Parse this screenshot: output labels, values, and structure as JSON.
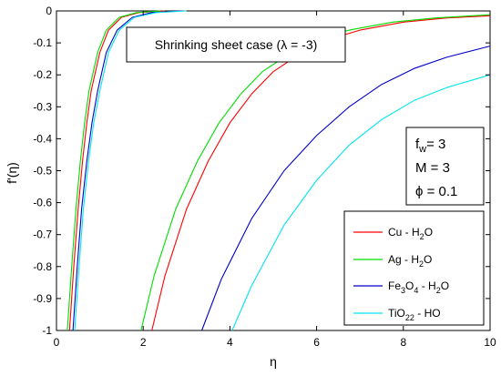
{
  "chart_data": {
    "type": "line",
    "title": "Shrinking sheet case (λ = -3)",
    "xlabel": "η",
    "ylabel": "f'(η)",
    "xlim": [
      0,
      10
    ],
    "ylim": [
      -1,
      0
    ],
    "xticks": [
      0,
      2,
      4,
      6,
      8,
      10
    ],
    "yticks": [
      0,
      -0.1,
      -0.2,
      -0.3,
      -0.4,
      -0.5,
      -0.6,
      -0.7,
      -0.8,
      -0.9,
      -1
    ],
    "xtick_labels": [
      "0",
      "2",
      "4",
      "6",
      "8",
      "10"
    ],
    "ytick_labels": [
      "0",
      "-0.1",
      "-0.2",
      "-0.3",
      "-0.4",
      "-0.5",
      "-0.6",
      "-0.7",
      "-0.8",
      "-0.9",
      "-1"
    ],
    "grid": false,
    "legend_position": "lower-right",
    "parameters": {
      "fw": {
        "symbol": "f",
        "subscript": "w",
        "value": "= 3"
      },
      "M": {
        "text": "M = 3"
      },
      "phi": {
        "text": "ϕ = 0.1"
      }
    },
    "series": [
      {
        "name": "Cu - H2O",
        "label_base": "Cu - H",
        "label_sub": "2",
        "label_tail": "O",
        "color": "#ff0000",
        "branches": [
          {
            "x": [
              0.3,
              0.4,
              0.5,
              0.6,
              0.7,
              0.8,
              1.0,
              1.2,
              1.5,
              1.9,
              2.5
            ],
            "y": [
              -1.0,
              -0.8,
              -0.62,
              -0.47,
              -0.35,
              -0.25,
              -0.13,
              -0.06,
              -0.02,
              -0.005,
              0
            ]
          },
          {
            "x": [
              2.2,
              2.5,
              3.0,
              3.5,
              4.0,
              4.5,
              5.0,
              6.0,
              7.0,
              8.0,
              9.0,
              10.0
            ],
            "y": [
              -1.0,
              -0.83,
              -0.62,
              -0.47,
              -0.35,
              -0.26,
              -0.19,
              -0.1,
              -0.06,
              -0.035,
              -0.022,
              -0.015
            ]
          }
        ]
      },
      {
        "name": "Ag - H2O",
        "label_base": "Ag - H",
        "label_sub": "2",
        "label_tail": "O",
        "color": "#00dd00",
        "branches": [
          {
            "x": [
              0.25,
              0.35,
              0.45,
              0.55,
              0.65,
              0.75,
              0.95,
              1.15,
              1.45,
              1.85,
              2.4
            ],
            "y": [
              -1.0,
              -0.8,
              -0.62,
              -0.47,
              -0.35,
              -0.25,
              -0.13,
              -0.06,
              -0.02,
              -0.005,
              0
            ]
          },
          {
            "x": [
              1.95,
              2.25,
              2.75,
              3.25,
              3.75,
              4.25,
              4.75,
              5.75,
              6.75,
              7.75,
              8.75,
              10.0
            ],
            "y": [
              -1.0,
              -0.83,
              -0.62,
              -0.47,
              -0.35,
              -0.26,
              -0.19,
              -0.1,
              -0.06,
              -0.035,
              -0.022,
              -0.012
            ]
          }
        ]
      },
      {
        "name": "Fe3O4 - H2O",
        "label_base": "Fe",
        "label_sub": "3",
        "label_mid": "O",
        "label_sub2": "4",
        "label_tail": " - H",
        "label_sub3": "2",
        "label_tail2": "O",
        "color": "#0000cc",
        "branches": [
          {
            "x": [
              0.38,
              0.48,
              0.58,
              0.7,
              0.82,
              0.95,
              1.15,
              1.4,
              1.75,
              2.2,
              2.9
            ],
            "y": [
              -1.0,
              -0.8,
              -0.62,
              -0.47,
              -0.35,
              -0.25,
              -0.13,
              -0.06,
              -0.02,
              -0.005,
              0
            ]
          },
          {
            "x": [
              3.35,
              3.8,
              4.5,
              5.25,
              6.0,
              6.75,
              7.5,
              8.25,
              9.0,
              10.0
            ],
            "y": [
              -1.0,
              -0.84,
              -0.65,
              -0.5,
              -0.39,
              -0.3,
              -0.23,
              -0.18,
              -0.145,
              -0.11
            ]
          }
        ]
      },
      {
        "name": "TiO2 - H2O",
        "label_base": "TiO",
        "label_sub": "2",
        "label_tail": " - H",
        "label_sub2": "2",
        "label_tail2": "O",
        "color": "#00e5ee",
        "branches": [
          {
            "x": [
              0.42,
              0.52,
              0.62,
              0.74,
              0.86,
              1.0,
              1.2,
              1.45,
              1.8,
              2.3,
              3.0
            ],
            "y": [
              -1.0,
              -0.8,
              -0.62,
              -0.47,
              -0.35,
              -0.25,
              -0.13,
              -0.06,
              -0.02,
              -0.005,
              0
            ]
          },
          {
            "x": [
              4.05,
              4.5,
              5.25,
              6.0,
              6.75,
              7.5,
              8.25,
              9.0,
              10.0
            ],
            "y": [
              -1.0,
              -0.86,
              -0.67,
              -0.53,
              -0.42,
              -0.34,
              -0.28,
              -0.24,
              -0.2
            ]
          }
        ]
      }
    ]
  }
}
